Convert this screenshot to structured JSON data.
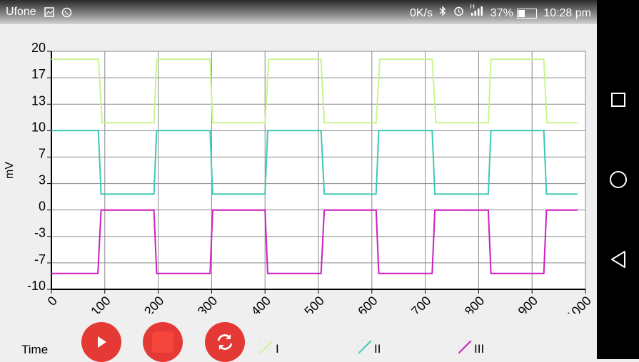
{
  "status_bar": {
    "carrier": "Ufone",
    "left_icons": [
      "gallery-icon",
      "whatsapp-icon"
    ],
    "speed": "0K/s",
    "right_icons": [
      "bluetooth-icon",
      "alarm-icon",
      "signal-icon"
    ],
    "signal_mark": "H",
    "battery": "37%",
    "time": "10:28 pm"
  },
  "chart_data": {
    "type": "line",
    "ylabel": "mV",
    "xlabel": "",
    "xlim": [
      0,
      1000
    ],
    "ylim": [
      -10,
      20
    ],
    "x_ticks": [
      0,
      100,
      200,
      300,
      400,
      500,
      600,
      700,
      800,
      900,
      1000
    ],
    "x_tick_labels": [
      "0",
      "100",
      "200",
      "300",
      "400",
      "500",
      "600",
      "700",
      "800",
      "900",
      "1000"
    ],
    "y_ticks": [
      20,
      16.67,
      13.33,
      10,
      6.67,
      3.33,
      0,
      -3.33,
      -6.67,
      -10
    ],
    "y_tick_labels": [
      "20",
      "17",
      "13",
      "10",
      "7",
      "3",
      "0",
      "-3",
      "-7",
      "-10"
    ],
    "grid": true,
    "series": [
      {
        "name": "I",
        "color": "#c8f58c",
        "x": [
          0,
          88,
          95,
          192,
          197,
          297,
          302,
          400,
          407,
          505,
          511,
          608,
          615,
          713,
          720,
          818,
          823,
          922,
          928,
          985
        ],
        "y": [
          19,
          19,
          11,
          11,
          19,
          19,
          11,
          11,
          19,
          19,
          11,
          11,
          19,
          19,
          11,
          11,
          19,
          19,
          11,
          11
        ]
      },
      {
        "name": "II",
        "color": "#3cc9b4",
        "x": [
          0,
          88,
          93,
          192,
          197,
          297,
          302,
          400,
          405,
          505,
          511,
          608,
          613,
          713,
          718,
          818,
          823,
          922,
          927,
          985
        ],
        "y": [
          10,
          10,
          2,
          2,
          10,
          10,
          2,
          2,
          10,
          10,
          2,
          2,
          10,
          10,
          2,
          2,
          10,
          10,
          2,
          2
        ]
      },
      {
        "name": "III",
        "color": "#cc1fbf",
        "x": [
          0,
          87,
          93,
          192,
          197,
          297,
          302,
          400,
          405,
          505,
          511,
          608,
          613,
          713,
          718,
          818,
          823,
          922,
          927,
          985
        ],
        "y": [
          -8,
          -8,
          0,
          0,
          -8,
          -8,
          0,
          0,
          -8,
          -8,
          0,
          0,
          -8,
          -8,
          0,
          0,
          -8,
          -8,
          0,
          0
        ]
      }
    ]
  },
  "controls": {
    "time_label": "Time",
    "buttons": [
      "play-icon",
      "stop-icon",
      "refresh-icon"
    ],
    "button_color": "#e53935"
  },
  "legend": [
    {
      "label": "I",
      "color": "#c8f58c"
    },
    {
      "label": "II",
      "color": "#3cc9b4"
    },
    {
      "label": "III",
      "color": "#cc1fbf"
    }
  ],
  "nav_bar": {
    "buttons": [
      "recents-square-icon",
      "home-circle-icon",
      "back-triangle-icon"
    ]
  }
}
